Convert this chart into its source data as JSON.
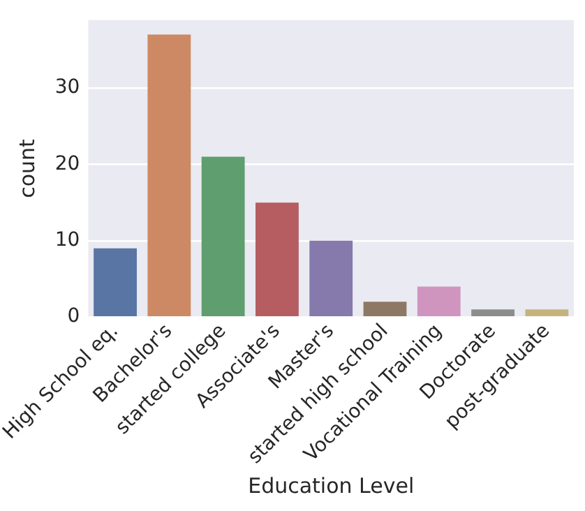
{
  "chart_data": {
    "type": "bar",
    "xlabel": "Education Level",
    "ylabel": "count",
    "categories": [
      "High School eq.",
      "Bachelor's",
      "started college",
      "Associate's",
      "Master's",
      "started high school",
      "Vocational Training",
      "Doctorate",
      "post-graduate"
    ],
    "values": [
      9,
      37,
      21,
      15,
      10,
      2,
      4,
      1,
      1
    ],
    "colors": [
      "#5975a4",
      "#cc8963",
      "#5f9e6e",
      "#b55d60",
      "#857aab",
      "#8d7866",
      "#d095bf",
      "#8c8c8c",
      "#c4b37d"
    ],
    "ylim": [
      0,
      38.9
    ],
    "yticks": [
      0,
      10,
      20,
      30
    ],
    "grid": "y",
    "legend": false
  }
}
